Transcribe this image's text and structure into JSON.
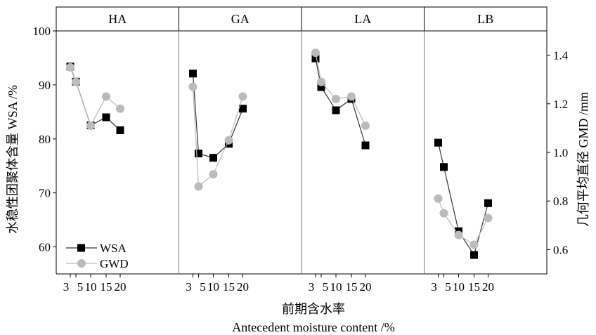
{
  "chart_data": {
    "type": "line",
    "layout": "faceted panels",
    "panels": [
      "HA",
      "GA",
      "LA",
      "LB"
    ],
    "x_tick_labels": [
      "3",
      "5",
      "10",
      "15",
      "20"
    ],
    "x_values": [
      3,
      5,
      10,
      15,
      20
    ],
    "xlabel_cn": "前期含水率",
    "xlabel_en": "Antecedent moisture content /%",
    "ylabel_left": "水稳性团聚体含量 WSA /%",
    "ylabel_right": "几何平均直径 GMD /mm",
    "ylim_left": [
      55,
      100
    ],
    "yticks_left": [
      60,
      70,
      80,
      90,
      100
    ],
    "ylim_right": [
      0.5,
      1.5
    ],
    "yticks_right": [
      "0.6",
      "0.8",
      "1.0",
      "1.2",
      "1.4"
    ],
    "grid": false,
    "legend_position": "bottom-left",
    "series": [
      {
        "name": "WSA",
        "axis": "left",
        "marker": "square",
        "color": "#000000",
        "line_color": "#333333",
        "values": {
          "HA": [
            93.4,
            90.6,
            82.5,
            84.0,
            81.6
          ],
          "GA": [
            92.1,
            77.3,
            76.5,
            79.1,
            85.6
          ],
          "LA": [
            94.9,
            89.6,
            85.3,
            87.4,
            78.8
          ],
          "LB": [
            79.3,
            74.8,
            62.9,
            58.5,
            68.1
          ]
        }
      },
      {
        "name": "GWD",
        "axis": "right",
        "marker": "circle",
        "color": "#bbbbbb",
        "line_color": "#bbbbbb",
        "values": {
          "HA": [
            1.35,
            1.29,
            1.11,
            1.23,
            1.18
          ],
          "GA": [
            1.27,
            0.86,
            0.91,
            1.05,
            1.23
          ],
          "LA": [
            1.41,
            1.29,
            1.22,
            1.23,
            1.11
          ],
          "LB": [
            0.81,
            0.75,
            0.66,
            0.62,
            0.73
          ]
        }
      }
    ]
  }
}
